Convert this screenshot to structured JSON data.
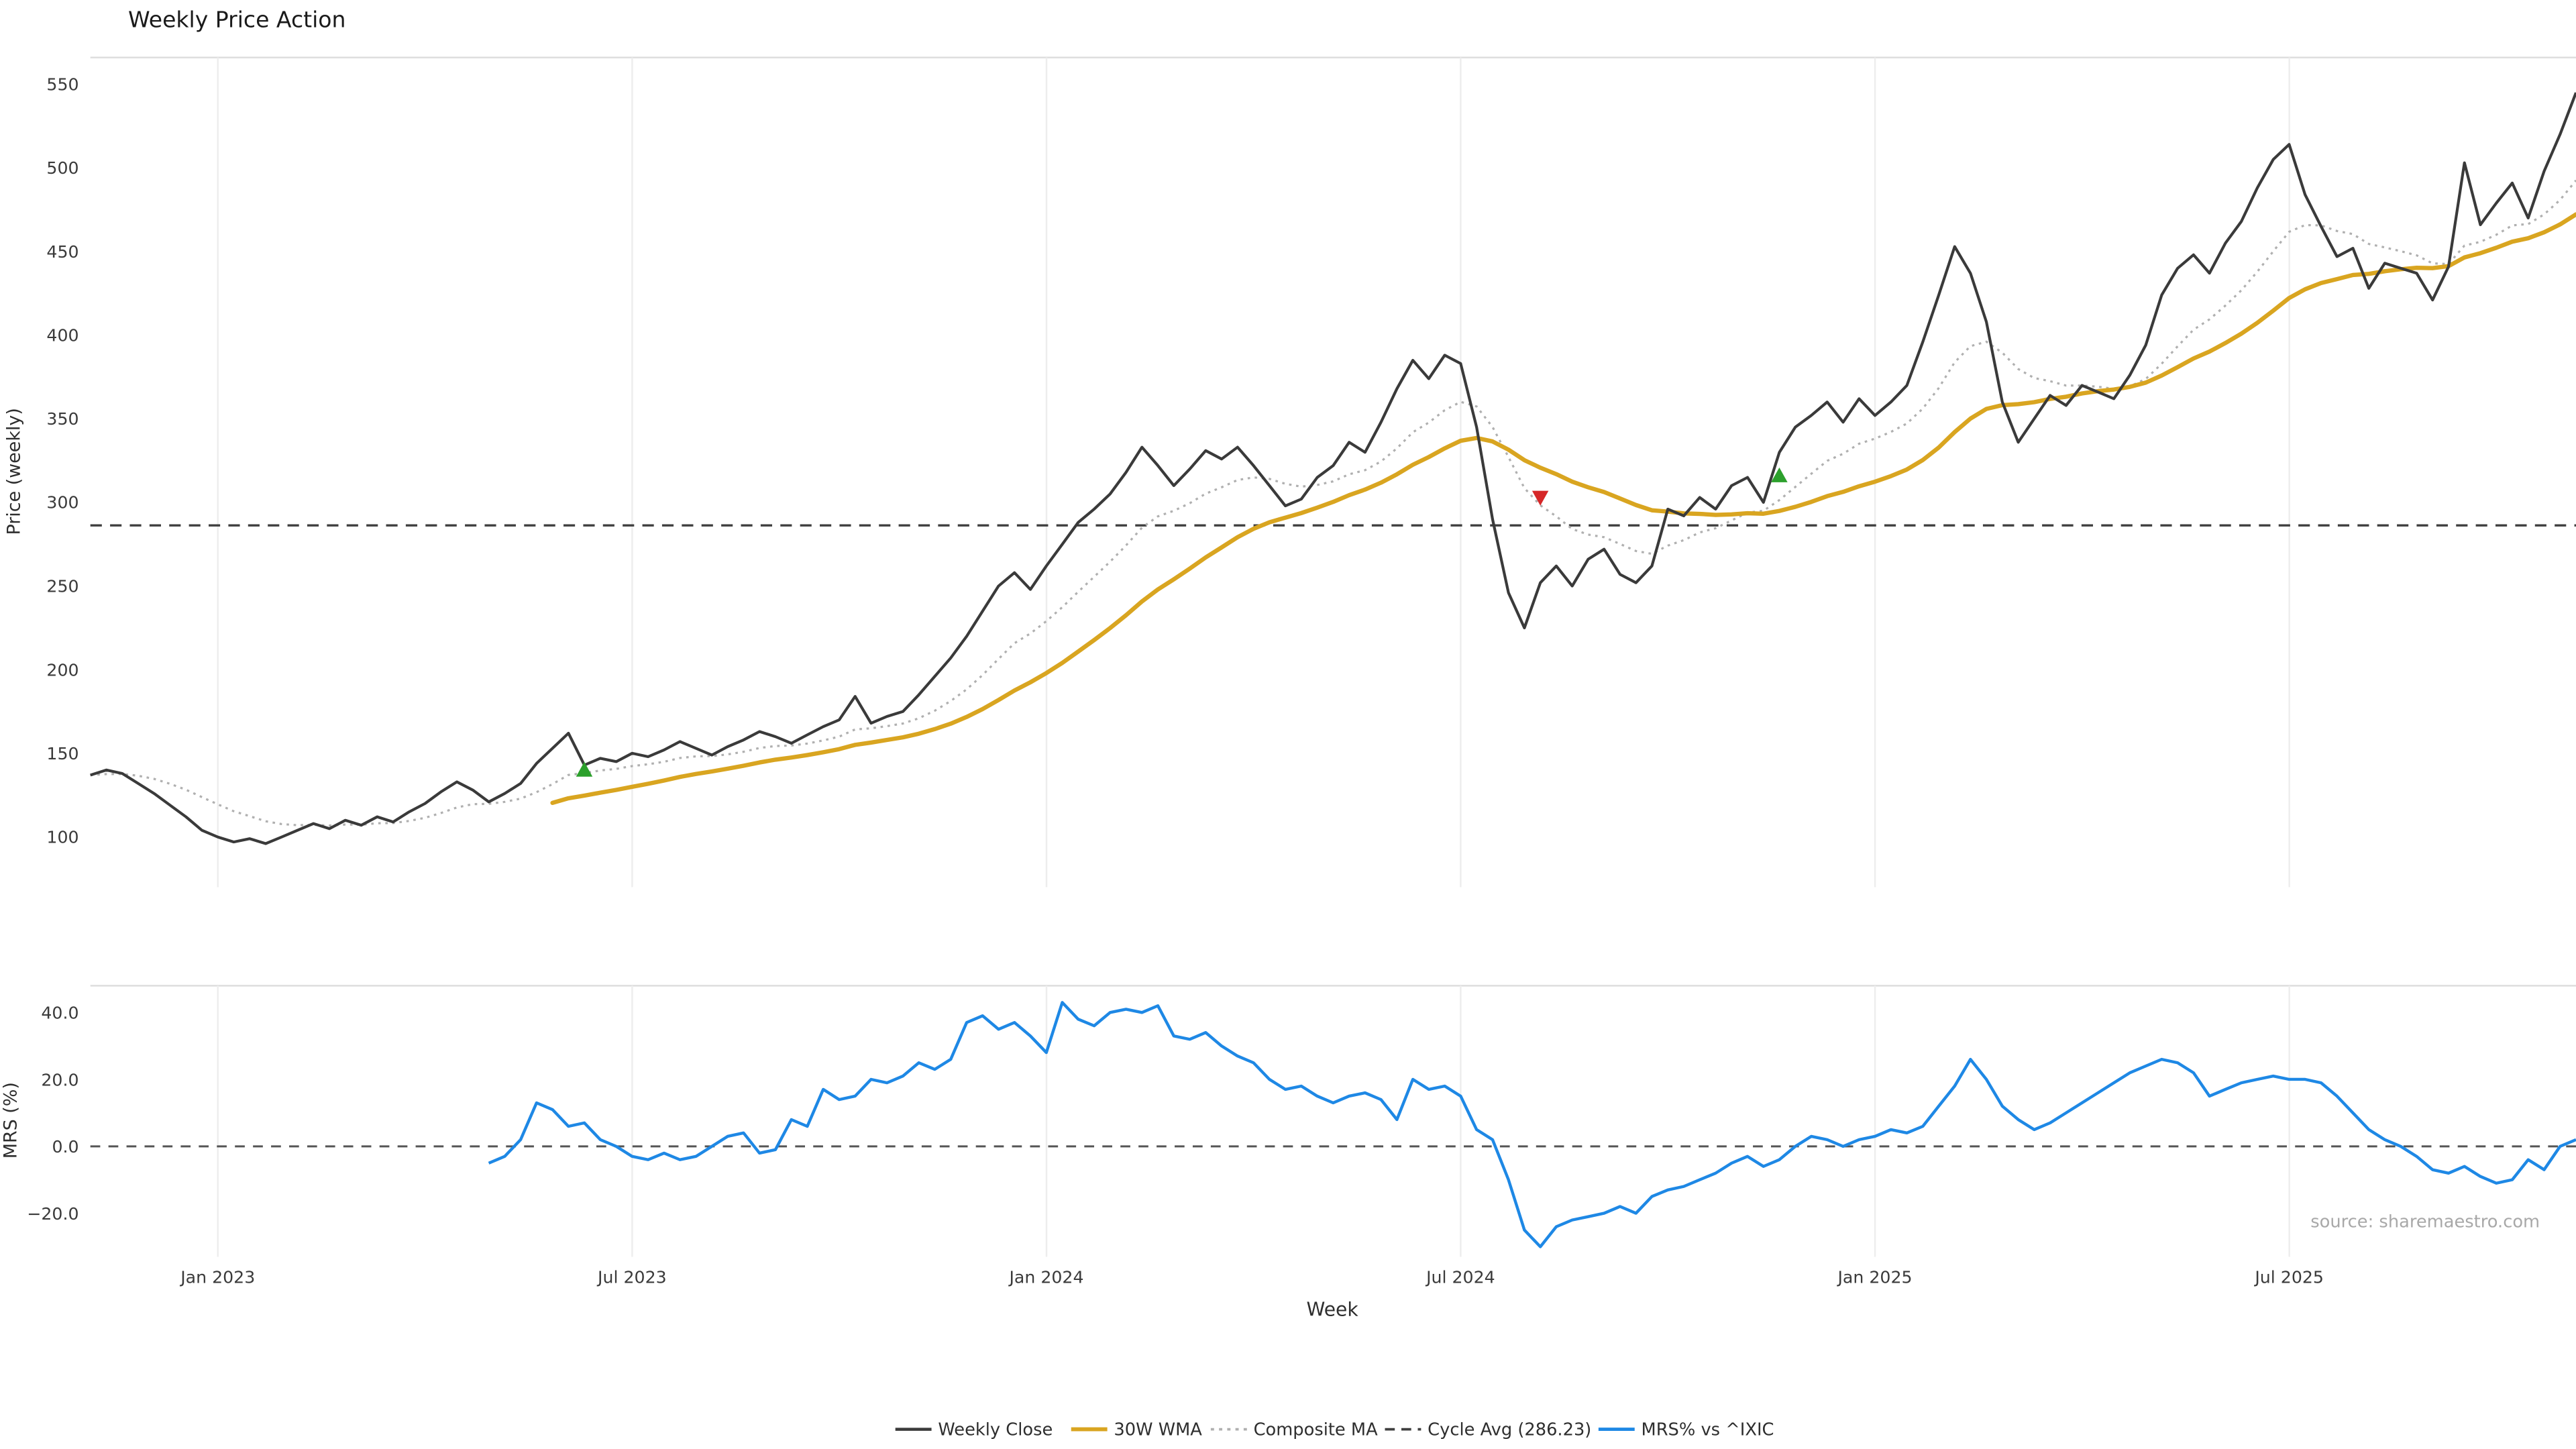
{
  "title": "Weekly Price Action",
  "source": "source: sharemaestro.com",
  "legend": {
    "items": [
      {
        "label": "Weekly Close",
        "color": "#3a3a3a",
        "style": "solid"
      },
      {
        "label": "30W WMA",
        "color": "#d9a520",
        "style": "solid"
      },
      {
        "label": "Composite MA",
        "color": "#b0b0b0",
        "style": "dotted"
      },
      {
        "label": "Cycle Avg (286.23)",
        "color": "#3f3f3f",
        "style": "dashed"
      },
      {
        "label": "MRS% vs ^IXIC",
        "color": "#1e88e5",
        "style": "solid"
      }
    ]
  },
  "chart_data": {
    "type": "line",
    "title": "Weekly Price Action",
    "x_axis": {
      "label": "Week",
      "total_weeks": 156,
      "ticks": [
        {
          "week": 8,
          "label": "Jan 2023"
        },
        {
          "week": 34,
          "label": "Jul 2023"
        },
        {
          "week": 60,
          "label": "Jan 2024"
        },
        {
          "week": 86,
          "label": "Jul 2024"
        },
        {
          "week": 112,
          "label": "Jan 2025"
        },
        {
          "week": 138,
          "label": "Jul 2025"
        }
      ]
    },
    "price_panel": {
      "ylabel": "Price (weekly)",
      "ylim": [
        70,
        566
      ],
      "grid": "vertical-only",
      "tick_values": [
        550,
        500,
        450,
        400,
        350,
        300,
        250,
        200,
        150,
        100
      ],
      "tick_labels": [
        "550",
        "500",
        "450",
        "400",
        "350",
        "300",
        "250",
        "200",
        "150",
        "100"
      ]
    },
    "mrs_panel": {
      "ylabel": "MRS (%)",
      "ylim": [
        -33,
        48
      ],
      "grid": "vertical-only",
      "tick_values": [
        40,
        20,
        0,
        -20
      ],
      "tick_labels": [
        "40.0",
        "20.0",
        "0.0",
        "−20.0"
      ]
    },
    "series": {
      "weekly_close": {
        "label": "Weekly Close",
        "color": "#3a3a3a",
        "start_week": 0,
        "values": [
          137,
          140,
          138,
          132,
          126,
          119,
          112,
          104,
          100,
          97,
          99,
          96,
          100,
          104,
          108,
          105,
          110,
          107,
          112,
          109,
          115,
          120,
          127,
          133,
          128,
          121,
          126,
          132,
          144,
          153,
          162,
          143,
          147,
          145,
          150,
          148,
          152,
          157,
          153,
          149,
          154,
          158,
          163,
          160,
          156,
          161,
          166,
          170,
          184,
          168,
          172,
          175,
          185,
          196,
          207,
          220,
          235,
          250,
          258,
          248,
          262,
          275,
          288,
          296,
          305,
          318,
          333,
          322,
          310,
          320,
          331,
          326,
          333,
          322,
          310,
          298,
          302,
          315,
          322,
          336,
          330,
          348,
          368,
          385,
          374,
          388,
          383,
          345,
          290,
          246,
          225,
          252,
          262,
          250,
          266,
          272,
          257,
          252,
          262,
          296,
          292,
          303,
          296,
          310,
          315,
          300,
          330,
          345,
          352,
          360,
          348,
          362,
          352,
          360,
          370,
          396,
          424,
          453,
          437,
          408,
          360,
          336,
          350,
          364,
          358,
          370,
          366,
          362,
          376,
          394,
          424,
          440,
          448,
          437,
          455,
          468,
          488,
          505,
          514,
          484,
          465,
          447,
          452,
          428,
          443,
          440,
          437,
          421,
          441,
          503,
          466,
          479,
          491,
          470,
          498,
          520,
          545
        ]
      },
      "wma_30w": {
        "label": "30W WMA",
        "color": "#d9a520",
        "window": 30,
        "derived_from": "weekly_close"
      },
      "composite_ma": {
        "label": "Composite MA",
        "color": "#b0b0b0",
        "ema_span": 10,
        "derived_from": "weekly_close"
      },
      "cycle_avg": {
        "label": "Cycle Avg (286.23)",
        "color": "#3f3f3f",
        "value": 286.23
      },
      "mrs": {
        "label": "MRS% vs ^IXIC",
        "color": "#1e88e5",
        "start_week": 25,
        "values": [
          -5,
          -3,
          2,
          13,
          11,
          6,
          7,
          2,
          0,
          -3,
          -4,
          -2,
          -4,
          -3,
          0,
          3,
          4,
          -2,
          -1,
          8,
          6,
          17,
          14,
          15,
          20,
          19,
          21,
          25,
          23,
          26,
          37,
          39,
          35,
          37,
          33,
          28,
          43,
          38,
          36,
          40,
          41,
          40,
          42,
          33,
          32,
          34,
          30,
          27,
          25,
          20,
          17,
          18,
          15,
          13,
          15,
          16,
          14,
          8,
          20,
          17,
          18,
          15,
          5,
          2,
          -10,
          -25,
          -30,
          -24,
          -22,
          -21,
          -20,
          -18,
          -20,
          -15,
          -13,
          -12,
          -10,
          -8,
          -5,
          -3,
          -6,
          -4,
          0,
          3,
          2,
          0,
          2,
          3,
          5,
          4,
          6,
          12,
          18,
          26,
          20,
          12,
          8,
          5,
          7,
          10,
          13,
          16,
          19,
          22,
          24,
          26,
          25,
          22,
          15,
          17,
          19,
          20,
          21,
          20,
          20,
          19,
          15,
          10,
          5,
          2,
          0,
          -3,
          -7,
          -8,
          -6,
          -9,
          -11,
          -10,
          -4,
          -7,
          0,
          2
        ]
      }
    },
    "signals": [
      {
        "week": 31,
        "price": 140,
        "type": "buy",
        "color": "#2ca02c"
      },
      {
        "week": 91,
        "price": 303,
        "type": "sell",
        "color": "#d62728"
      },
      {
        "week": 106,
        "price": 316,
        "type": "buy",
        "color": "#2ca02c"
      }
    ]
  }
}
